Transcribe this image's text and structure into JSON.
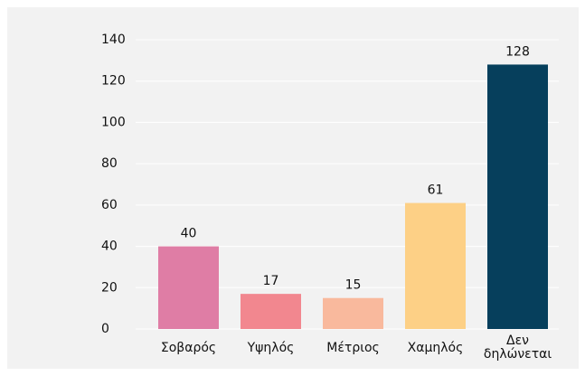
{
  "chart_data": {
    "type": "bar",
    "categories": [
      "Σοβαρός",
      "Υψηλός",
      "Μέτριος",
      "Χαμηλός",
      "Δεν δηλώνεται"
    ],
    "values": [
      40,
      17,
      15,
      61,
      128
    ],
    "colors": [
      "#df7da5",
      "#f2878f",
      "#f9b99d",
      "#fdd086",
      "#063f5c"
    ],
    "ylim": [
      0,
      140
    ],
    "yticks": [
      0,
      20,
      40,
      60,
      80,
      100,
      120,
      140
    ],
    "grid": true
  }
}
